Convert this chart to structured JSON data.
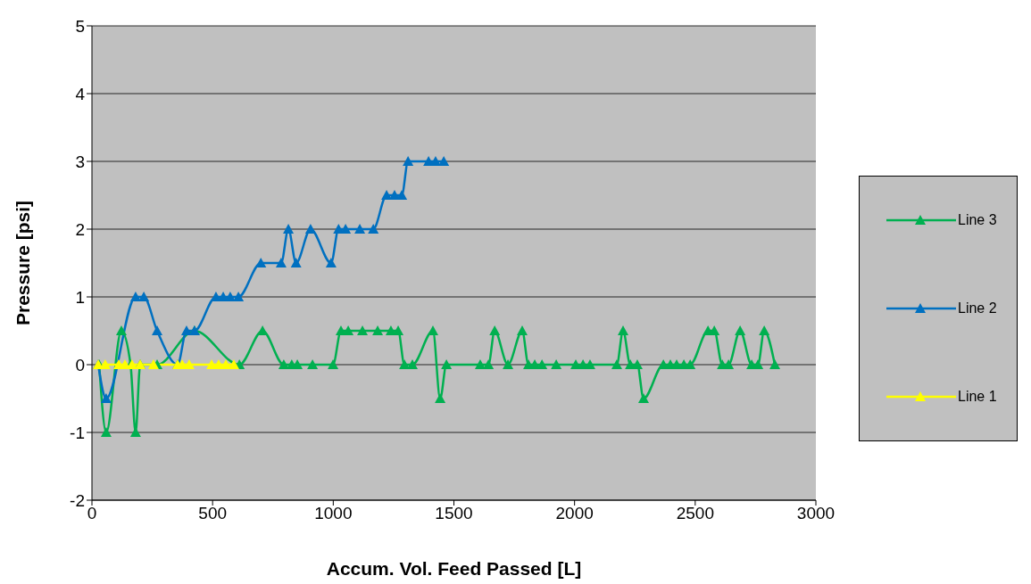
{
  "chart_data": {
    "type": "line",
    "xlabel": "Accum. Vol. Feed Passed [L]",
    "ylabel": "Pressure [psi]",
    "xlim": [
      0,
      3000
    ],
    "xticks": [
      0,
      500,
      1000,
      1500,
      2000,
      2500,
      3000
    ],
    "ylim": [
      -2,
      5
    ],
    "yticks": [
      -2,
      -1,
      0,
      1,
      2,
      3,
      4,
      5
    ],
    "grid": "y",
    "legend": "right",
    "marker": "triangle",
    "line_style": "solid",
    "series": [
      {
        "name": "Line 3",
        "color": "#00b050",
        "x": [
          30,
          59,
          122,
          160,
          181,
          200,
          270,
          425,
          611,
          707,
          795,
          828,
          851,
          914,
          999,
          1032,
          1062,
          1121,
          1184,
          1239,
          1269,
          1295,
          1328,
          1413,
          1443,
          1469,
          1609,
          1643,
          1669,
          1724,
          1783,
          1809,
          1835,
          1865,
          1924,
          2005,
          2035,
          2064,
          2175,
          2201,
          2231,
          2260,
          2286,
          2368,
          2397,
          2423,
          2453,
          2479,
          2553,
          2579,
          2612,
          2638,
          2686,
          2734,
          2760,
          2786,
          2830
        ],
        "values": [
          0,
          -1,
          0.5,
          0,
          -1,
          0,
          0,
          0.5,
          0,
          0.5,
          0,
          0,
          0,
          0,
          0,
          0.5,
          0.5,
          0.5,
          0.5,
          0.5,
          0.5,
          0,
          0,
          0.5,
          -0.5,
          0,
          0,
          0,
          0.5,
          0,
          0.5,
          0,
          0,
          0,
          0,
          0,
          0,
          0,
          0,
          0.5,
          0,
          0,
          -0.5,
          0,
          0,
          0,
          0,
          0,
          0.5,
          0.5,
          0,
          0,
          0.5,
          0,
          0,
          0.5,
          0
        ]
      },
      {
        "name": "Line 2",
        "color": "#0070c0",
        "x": [
          26,
          59,
          181,
          215,
          270,
          355,
          392,
          425,
          514,
          544,
          573,
          607,
          700,
          784,
          814,
          846,
          906,
          991,
          1022,
          1051,
          1110,
          1166,
          1221,
          1254,
          1284,
          1310,
          1395,
          1424,
          1458
        ],
        "values": [
          0,
          -0.5,
          1,
          1,
          0.5,
          0,
          0.5,
          0.5,
          1,
          1,
          1,
          1,
          1.5,
          1.5,
          2,
          1.5,
          2,
          1.5,
          2,
          2,
          2,
          2,
          2.5,
          2.5,
          2.5,
          3,
          3,
          3,
          3
        ]
      },
      {
        "name": "Line 1",
        "color": "#ffff00",
        "x": [
          26,
          55,
          111,
          137,
          166,
          200,
          255,
          355,
          374,
          403,
          496,
          525,
          555,
          588
        ],
        "values": [
          0,
          0,
          0,
          0,
          0,
          0,
          0,
          0,
          0,
          0,
          0,
          0,
          0,
          0
        ]
      }
    ]
  }
}
